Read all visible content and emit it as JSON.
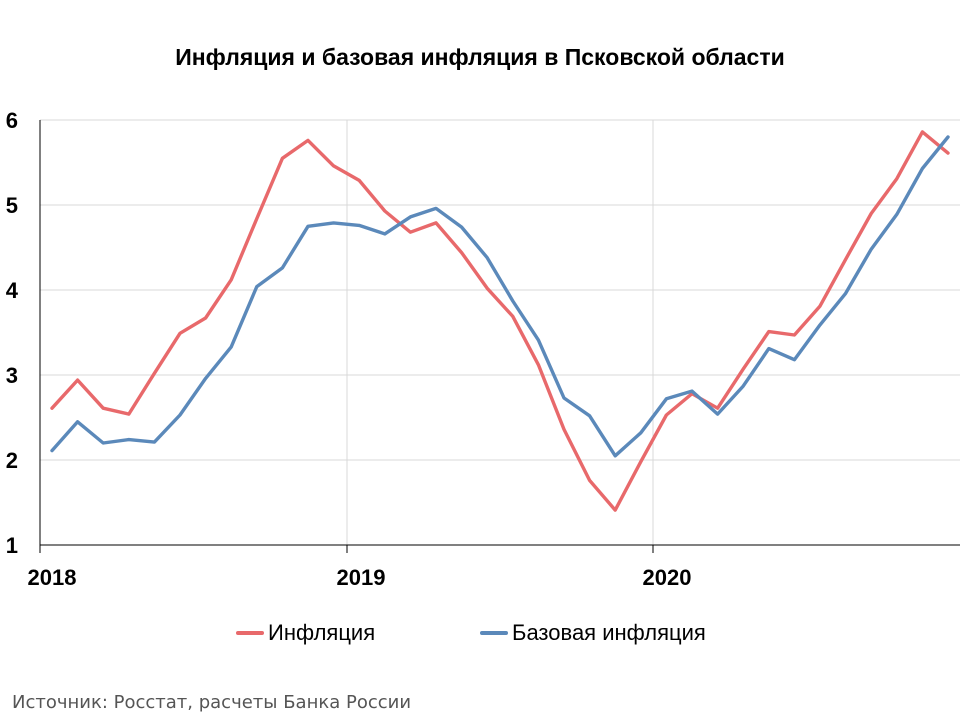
{
  "title": "Инфляция и базовая инфляция в Псковской области",
  "source": "Источник: Росстат, расчеты Банка России",
  "chart_data": {
    "type": "line",
    "title": "Инфляция и базовая инфляция в Псковской области",
    "xlabel": "",
    "ylabel": "",
    "ylim": [
      1,
      6
    ],
    "yticks": [
      1,
      2,
      3,
      4,
      5,
      6
    ],
    "xticks": [
      "2018",
      "2019",
      "2020"
    ],
    "x_start": "2018-01",
    "frequency": "monthly",
    "grid": true,
    "legend_position": "bottom",
    "series": [
      {
        "name": "Инфляция",
        "color": "#e8696b",
        "values": [
          2.61,
          2.94,
          2.61,
          2.54,
          3.02,
          3.49,
          3.67,
          4.12,
          4.84,
          5.55,
          5.76,
          5.46,
          5.29,
          4.93,
          4.68,
          4.79,
          4.44,
          4.02,
          3.69,
          3.12,
          2.36,
          1.76,
          1.41,
          1.98,
          2.53,
          2.78,
          2.61,
          3.07,
          3.51,
          3.47,
          3.81,
          4.36,
          4.9,
          5.31,
          5.86,
          5.61
        ]
      },
      {
        "name": "Базовая инфляция",
        "color": "#5b89ba",
        "values": [
          2.11,
          2.45,
          2.2,
          2.24,
          2.21,
          2.53,
          2.96,
          3.33,
          4.04,
          4.26,
          4.75,
          4.79,
          4.76,
          4.66,
          4.86,
          4.96,
          4.74,
          4.38,
          3.87,
          3.41,
          2.73,
          2.52,
          2.05,
          2.32,
          2.72,
          2.81,
          2.54,
          2.87,
          3.31,
          3.18,
          3.59,
          3.96,
          4.48,
          4.89,
          5.43,
          5.8
        ]
      }
    ]
  }
}
